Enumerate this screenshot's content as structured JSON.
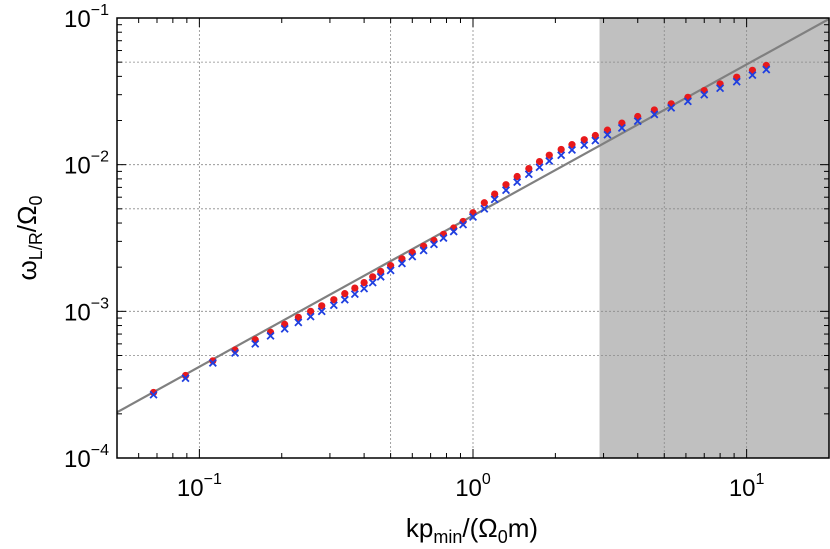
{
  "chart_data": {
    "type": "scatter",
    "title": "",
    "xscale": "log",
    "yscale": "log",
    "xlim": [
      0.05,
      20
    ],
    "ylim": [
      0.0001,
      0.1
    ],
    "grid": true,
    "xlabel": {
      "main": "kp",
      "sub": "min",
      "rest": "/(Ω",
      "sub2": "0",
      "end": "m)"
    },
    "ylabel": {
      "main": "ω",
      "sub": "L/R",
      "rest": "/Ω",
      "sub2": "0"
    },
    "xticks": [
      {
        "value": 0.1,
        "base": "10",
        "exp": "−1"
      },
      {
        "value": 1,
        "base": "10",
        "exp": "0"
      },
      {
        "value": 10,
        "base": "10",
        "exp": "1"
      }
    ],
    "yticks": [
      {
        "value": 0.0001,
        "base": "10",
        "exp": "−4"
      },
      {
        "value": 0.001,
        "base": "10",
        "exp": "−3"
      },
      {
        "value": 0.01,
        "base": "10",
        "exp": "−2"
      },
      {
        "value": 0.1,
        "base": "10",
        "exp": "−1"
      }
    ],
    "shaded_region": {
      "x_from": 2.9,
      "x_to": 20,
      "color": "#c0c0c0"
    },
    "reference_line": {
      "x": [
        0.05,
        20
      ],
      "y": [
        0.000205,
        0.0985
      ],
      "color": "#808080"
    },
    "series": [
      {
        "marker": "circle",
        "color": "#e8191b",
        "x": [
          0.068,
          0.089,
          0.112,
          0.135,
          0.16,
          0.182,
          0.205,
          0.23,
          0.255,
          0.28,
          0.31,
          0.34,
          0.37,
          0.4,
          0.43,
          0.46,
          0.5,
          0.55,
          0.6,
          0.66,
          0.72,
          0.78,
          0.85,
          0.92,
          1.0,
          1.1,
          1.2,
          1.32,
          1.45,
          1.6,
          1.75,
          1.9,
          2.1,
          2.3,
          2.55,
          2.8,
          3.1,
          3.5,
          4.0,
          4.6,
          5.3,
          6.1,
          7.0,
          8.0,
          9.2,
          10.5,
          11.8
        ],
        "y": [
          0.00028,
          0.000365,
          0.00046,
          0.000545,
          0.00064,
          0.00072,
          0.000815,
          0.00091,
          0.001,
          0.00109,
          0.0012,
          0.00132,
          0.00144,
          0.00157,
          0.00172,
          0.00187,
          0.00205,
          0.00228,
          0.00252,
          0.00278,
          0.00304,
          0.00335,
          0.0037,
          0.0041,
          0.0047,
          0.0055,
          0.0063,
          0.0073,
          0.0083,
          0.0094,
          0.0105,
          0.0116,
          0.0127,
          0.0137,
          0.0148,
          0.0158,
          0.0172,
          0.0192,
          0.0213,
          0.0236,
          0.026,
          0.0288,
          0.032,
          0.0355,
          0.0395,
          0.044,
          0.0475
        ]
      },
      {
        "marker": "x",
        "color": "#1f3fe0",
        "x": [
          0.068,
          0.089,
          0.112,
          0.135,
          0.16,
          0.182,
          0.205,
          0.23,
          0.255,
          0.28,
          0.31,
          0.34,
          0.37,
          0.4,
          0.43,
          0.46,
          0.5,
          0.55,
          0.6,
          0.66,
          0.72,
          0.78,
          0.85,
          0.92,
          1.0,
          1.1,
          1.2,
          1.32,
          1.45,
          1.6,
          1.75,
          1.9,
          2.1,
          2.3,
          2.55,
          2.8,
          3.1,
          3.5,
          4.0,
          4.6,
          5.3,
          6.1,
          7.0,
          8.0,
          9.2,
          10.5,
          11.8
        ],
        "y": [
          0.00027,
          0.00035,
          0.000445,
          0.00052,
          0.0006,
          0.00068,
          0.00076,
          0.00084,
          0.00092,
          0.001,
          0.0011,
          0.0012,
          0.00131,
          0.00143,
          0.00157,
          0.00172,
          0.0019,
          0.00212,
          0.00236,
          0.0026,
          0.00286,
          0.00316,
          0.0035,
          0.0039,
          0.0044,
          0.005,
          0.0058,
          0.0067,
          0.0076,
          0.0086,
          0.0096,
          0.0106,
          0.0116,
          0.0126,
          0.0136,
          0.0146,
          0.016,
          0.0178,
          0.0198,
          0.022,
          0.0244,
          0.027,
          0.03,
          0.0332,
          0.0368,
          0.0408,
          0.0445
        ]
      }
    ]
  }
}
